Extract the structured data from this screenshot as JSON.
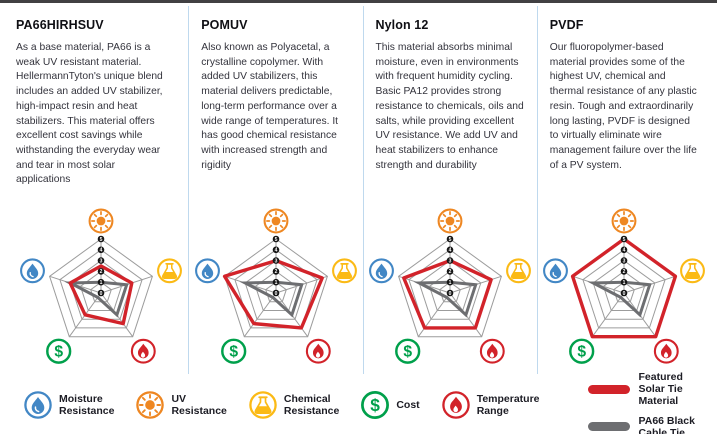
{
  "columns": [
    {
      "title": "PA66HIRHSUV",
      "description": "As a base material, PA66 is a weak UV resistant material. HellermannTyton's unique blend includes an added UV stabilizer, high-impact resin and heat stabilizers. This material offers excellent cost savings while withstanding the everyday wear and tear in most solar applications"
    },
    {
      "title": "POMUV",
      "description": "Also known as Polyacetal, a crystalline copolymer. With added UV stabilizers, this material delivers predictable, long-term performance over a wide range of temperatures. It has good chemical resistance with increased strength and rigidity"
    },
    {
      "title": "Nylon 12",
      "description": "This material absorbs minimal moisture, even in environments with frequent humidity cycling. Basic PA12 provides strong resistance to chemicals, oils and salts, while providing excellent UV resistance. We add UV and heat stabilizers to enhance strength and durability"
    },
    {
      "title": "PVDF",
      "description": "Our fluoropolymer-based material provides some of the highest UV, chemical and thermal resistance of any plastic resin. Tough and extraordinarily long lasting, PVDF is designed to virtually eliminate wire management failure over the life of a PV system."
    }
  ],
  "chart_data": [
    {
      "type": "radar",
      "title": "PA66HIRHSUV",
      "axes": [
        "UV Resistance",
        "Chemical Resistance",
        "Temperature Range",
        "Cost",
        "Moisture Resistance"
      ],
      "axis_icons": [
        "sun-icon",
        "flask-icon",
        "flame-icon",
        "dollar-icon",
        "droplet-icon"
      ],
      "axis_colors": [
        "#EE8722",
        "#FBBA16",
        "#D2232A",
        "#00A04B",
        "#4287C5"
      ],
      "scale": [
        0,
        5
      ],
      "rings": 5,
      "ticks": [
        0,
        1,
        2,
        3,
        4,
        5
      ],
      "series": [
        {
          "name": "Featured Solar Tie Material",
          "color": "#D2232A",
          "values": [
            2.5,
            3,
            3.5,
            2.5,
            3
          ]
        },
        {
          "name": "PA66 Black Cable Tie",
          "color": "#6D6E71",
          "values": [
            1,
            2.5,
            2.5,
            0.5,
            3
          ]
        }
      ]
    },
    {
      "type": "radar",
      "title": "POMUV",
      "axes": [
        "UV Resistance",
        "Chemical Resistance",
        "Temperature Range",
        "Cost",
        "Moisture Resistance"
      ],
      "axis_icons": [
        "sun-icon",
        "flask-icon",
        "flame-icon",
        "dollar-icon",
        "droplet-icon"
      ],
      "axis_colors": [
        "#EE8722",
        "#FBBA16",
        "#D2232A",
        "#00A04B",
        "#4287C5"
      ],
      "scale": [
        0,
        5
      ],
      "rings": 5,
      "ticks": [
        0,
        1,
        2,
        3,
        4,
        5
      ],
      "series": [
        {
          "name": "Featured Solar Tie Material",
          "color": "#D2232A",
          "values": [
            3,
            4.5,
            4,
            3.5,
            5
          ]
        },
        {
          "name": "PA66 Black Cable Tie",
          "color": "#6D6E71",
          "values": [
            1,
            2.5,
            2.5,
            0.5,
            3
          ]
        }
      ]
    },
    {
      "type": "radar",
      "title": "Nylon 12",
      "axes": [
        "UV Resistance",
        "Chemical Resistance",
        "Temperature Range",
        "Cost",
        "Moisture Resistance"
      ],
      "axis_icons": [
        "sun-icon",
        "flask-icon",
        "flame-icon",
        "dollar-icon",
        "droplet-icon"
      ],
      "axis_colors": [
        "#EE8722",
        "#FBBA16",
        "#D2232A",
        "#00A04B",
        "#4287C5"
      ],
      "scale": [
        0,
        5
      ],
      "rings": 5,
      "ticks": [
        0,
        1,
        2,
        3,
        4,
        5
      ],
      "series": [
        {
          "name": "Featured Solar Tie Material",
          "color": "#D2232A",
          "values": [
            3,
            4,
            4,
            4,
            4.5
          ]
        },
        {
          "name": "PA66 Black Cable Tie",
          "color": "#6D6E71",
          "values": [
            1,
            2.5,
            2.5,
            0.5,
            3
          ]
        }
      ]
    },
    {
      "type": "radar",
      "title": "PVDF",
      "axes": [
        "UV Resistance",
        "Chemical Resistance",
        "Temperature Range",
        "Cost",
        "Moisture Resistance"
      ],
      "axis_icons": [
        "sun-icon",
        "flask-icon",
        "flame-icon",
        "dollar-icon",
        "droplet-icon"
      ],
      "axis_colors": [
        "#EE8722",
        "#FBBA16",
        "#D2232A",
        "#00A04B",
        "#4287C5"
      ],
      "scale": [
        0,
        5
      ],
      "rings": 5,
      "ticks": [
        0,
        1,
        2,
        3,
        4,
        5
      ],
      "series": [
        {
          "name": "Featured Solar Tie Material",
          "color": "#D2232A",
          "values": [
            5,
            5,
            5,
            5,
            5
          ]
        },
        {
          "name": "PA66 Black Cable Tie",
          "color": "#6D6E71",
          "values": [
            1,
            2.5,
            2.5,
            0.5,
            3
          ]
        }
      ]
    }
  ],
  "legend": {
    "attributes": [
      {
        "label": "Moisture Resistance",
        "icon": "droplet-icon",
        "color": "#4287C5"
      },
      {
        "label": "UV Resistance",
        "icon": "sun-icon",
        "color": "#EE8722"
      },
      {
        "label": "Chemical Resistance",
        "icon": "flask-icon",
        "color": "#FBBA16"
      },
      {
        "label": "Cost",
        "icon": "dollar-icon",
        "color": "#00A04B"
      },
      {
        "label": "Temperature Range",
        "icon": "flame-icon",
        "color": "#D2232A"
      }
    ],
    "series": [
      {
        "label": "Featured Solar Tie Material",
        "color": "#D2232A"
      },
      {
        "label": "PA66 Black Cable Tie",
        "color": "#6D6E71"
      }
    ]
  },
  "colors": {
    "featured_line": "#D2232A",
    "reference_line": "#6D6E71",
    "grid": "#9C9C9C",
    "divider": "#BFD9EE",
    "top_border": "#414042"
  }
}
